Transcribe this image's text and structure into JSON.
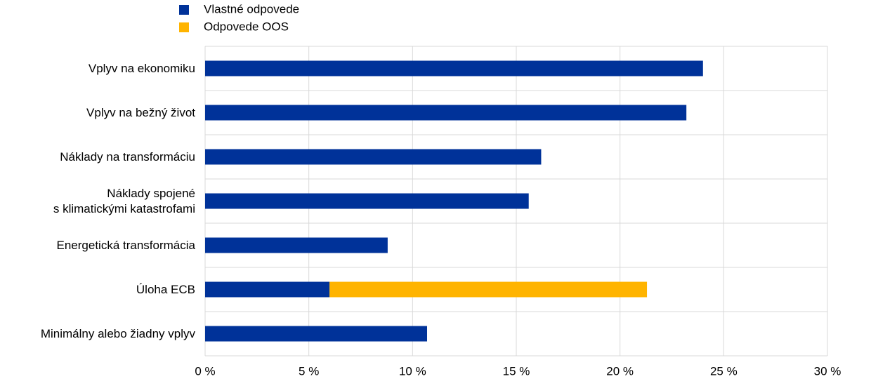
{
  "chart_data": {
    "type": "bar",
    "orientation": "horizontal",
    "stacked": true,
    "categories": [
      "Vplyv na ekonomiku",
      "Vplyv na bežný život",
      "Náklady na transformáciu",
      "Náklady spojené\ns klimatickými katastrofami",
      "Energetická transformácia",
      "Úloha ECB",
      "Minimálny alebo žiadny vplyv"
    ],
    "series": [
      {
        "name": "Vlastné odpovede",
        "color": "#003299",
        "values": [
          24,
          23.2,
          16.2,
          15.6,
          8.8,
          6,
          10.7
        ]
      },
      {
        "name": "Odpovede OOS",
        "color": "#ffb400",
        "values": [
          null,
          null,
          null,
          null,
          null,
          15.3,
          null
        ]
      }
    ],
    "xlim": [
      0,
      30
    ],
    "xticks": [
      {
        "value": 0,
        "label": "0 %"
      },
      {
        "value": 5,
        "label": "5 %"
      },
      {
        "value": 10,
        "label": "10 %"
      },
      {
        "value": 15,
        "label": "15 %"
      },
      {
        "value": 20,
        "label": "20 %"
      },
      {
        "value": 25,
        "label": "25 %"
      },
      {
        "value": 30,
        "label": "30 %"
      }
    ],
    "grid": true,
    "legend": "top-left"
  }
}
